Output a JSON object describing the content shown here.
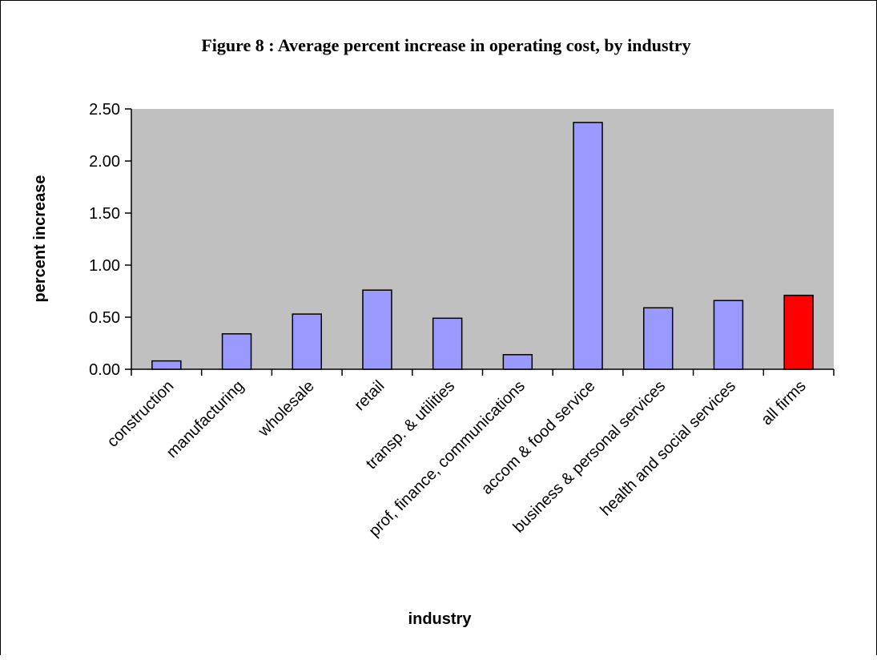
{
  "chart_data": {
    "type": "bar",
    "title": "Figure 8 : Average percent increase in operating cost, by industry",
    "xlabel": "industry",
    "ylabel": "percent increase",
    "ylim": [
      0,
      2.5
    ],
    "yticks": [
      "0.00",
      "0.50",
      "1.00",
      "1.50",
      "2.00",
      "2.50"
    ],
    "grid": false,
    "legend": "none",
    "categories": [
      "construction",
      "manufacturing",
      "wholesale",
      "retail",
      "transp. & utilities",
      "prof, finance, communications",
      "accom & food service",
      "business & personal services",
      "health and social services",
      "all firms"
    ],
    "values": [
      0.08,
      0.34,
      0.53,
      0.76,
      0.49,
      0.14,
      2.37,
      0.59,
      0.66,
      0.71
    ],
    "colors": {
      "plot_background": "#c0c0c0",
      "bar": "#9999ff",
      "highlight_bar": "#ff0000",
      "bar_outline": "#000000"
    },
    "highlight_category": "all firms"
  }
}
